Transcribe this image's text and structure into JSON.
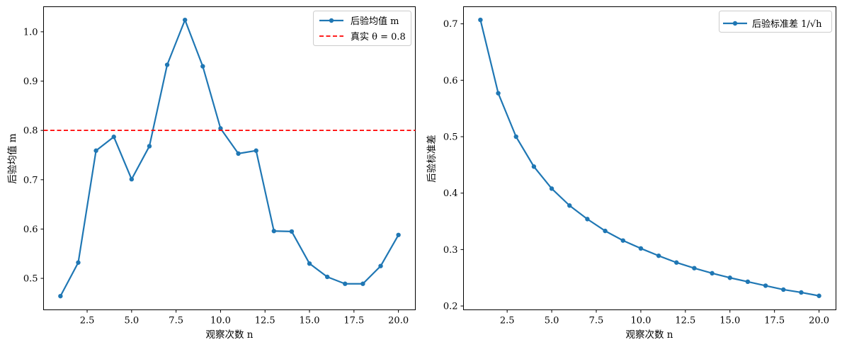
{
  "chart_data": [
    {
      "type": "line",
      "xlabel": "观察次数 n",
      "ylabel": "后验均值 m",
      "xlim": [
        0.05,
        20.95
      ],
      "ylim": [
        0.4362,
        1.0508
      ],
      "xticks": [
        2.5,
        5.0,
        7.5,
        10.0,
        12.5,
        15.0,
        17.5,
        20.0
      ],
      "xtick_labels": [
        "2.5",
        "5.0",
        "7.5",
        "10.0",
        "12.5",
        "15.0",
        "17.5",
        "20.0"
      ],
      "yticks": [
        0.5,
        0.6,
        0.7,
        0.8,
        0.9,
        1.0
      ],
      "ytick_labels": [
        "0.5",
        "0.6",
        "0.7",
        "0.8",
        "0.9",
        "1.0"
      ],
      "grid": false,
      "legend_position": "top-right",
      "x": [
        1,
        2,
        3,
        4,
        5,
        6,
        7,
        8,
        9,
        10,
        11,
        12,
        13,
        14,
        15,
        16,
        17,
        18,
        19,
        20
      ],
      "series": [
        {
          "name": "后验均值 m",
          "color": "#1f77b4",
          "style": "solid-with-markers",
          "values": [
            0.464,
            0.532,
            0.759,
            0.787,
            0.701,
            0.768,
            0.933,
            1.024,
            0.93,
            0.804,
            0.753,
            0.759,
            0.596,
            0.595,
            0.53,
            0.503,
            0.489,
            0.489,
            0.525,
            0.588
          ]
        },
        {
          "name": "真实 θ = 0.8",
          "color": "#ff0000",
          "style": "dashed-horizontal",
          "value": 0.8
        }
      ]
    },
    {
      "type": "line",
      "xlabel": "观察次数 n",
      "ylabel": "后验标准差",
      "xlim": [
        0.05,
        20.95
      ],
      "ylim": [
        0.1932,
        0.7303
      ],
      "xticks": [
        2.5,
        5.0,
        7.5,
        10.0,
        12.5,
        15.0,
        17.5,
        20.0
      ],
      "xtick_labels": [
        "2.5",
        "5.0",
        "7.5",
        "10.0",
        "12.5",
        "15.0",
        "17.5",
        "20.0"
      ],
      "yticks": [
        0.2,
        0.3,
        0.4,
        0.5,
        0.6,
        0.7
      ],
      "ytick_labels": [
        "0.2",
        "0.3",
        "0.4",
        "0.5",
        "0.6",
        "0.7"
      ],
      "grid": false,
      "legend_position": "top-right",
      "x": [
        1,
        2,
        3,
        4,
        5,
        6,
        7,
        8,
        9,
        10,
        11,
        12,
        13,
        14,
        15,
        16,
        17,
        18,
        19,
        20
      ],
      "series": [
        {
          "name": "后验标准差 1/√h",
          "color": "#1f77b4",
          "style": "solid-with-markers",
          "values": [
            0.707,
            0.577,
            0.5,
            0.447,
            0.408,
            0.378,
            0.354,
            0.333,
            0.316,
            0.302,
            0.289,
            0.277,
            0.267,
            0.258,
            0.25,
            0.243,
            0.236,
            0.229,
            0.224,
            0.218
          ]
        }
      ]
    }
  ]
}
